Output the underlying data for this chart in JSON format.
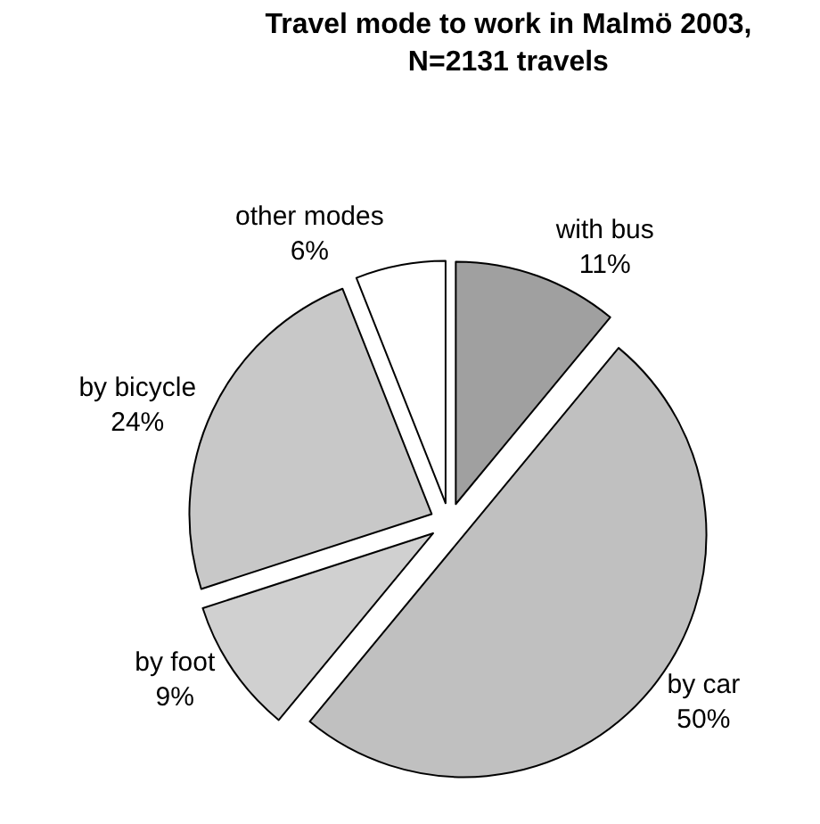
{
  "chart_data": {
    "type": "pie",
    "title": "Travel mode to work in Malmö 2003,\nN=2131 travels",
    "categories": [
      "with bus",
      "by car",
      "by foot",
      "by bicycle",
      "other modes"
    ],
    "values": [
      11,
      50,
      9,
      24,
      6
    ],
    "value_labels": [
      "11%",
      "50%",
      "9%",
      "24%",
      "6%"
    ],
    "colors": [
      "#a0a0a0",
      "#c0c0c0",
      "#d0d0d0",
      "#c8c8c8",
      "#ffffff"
    ],
    "legend": false
  }
}
